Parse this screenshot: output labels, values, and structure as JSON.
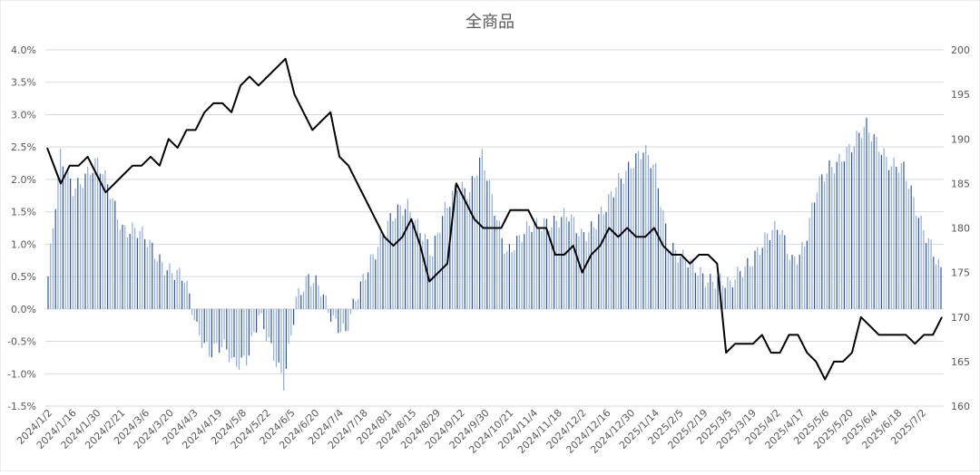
{
  "chart_data": {
    "type": "bar+line",
    "title": "全商品",
    "xlabel": "",
    "ylabel_left": "",
    "ylabel_right": "",
    "left_axis": {
      "range": [
        -1.5,
        4.0
      ],
      "ticks": [
        "-1.5%",
        "-1.0%",
        "-0.5%",
        "0.0%",
        "0.5%",
        "1.0%",
        "1.5%",
        "2.0%",
        "2.5%",
        "3.0%",
        "3.5%",
        "4.0%"
      ],
      "tick_values": [
        -1.5,
        -1.0,
        -0.5,
        0.0,
        0.5,
        1.0,
        1.5,
        2.0,
        2.5,
        3.0,
        3.5,
        4.0
      ]
    },
    "right_axis": {
      "range": [
        160,
        200
      ],
      "ticks": [
        "160",
        "165",
        "170",
        "175",
        "180",
        "185",
        "190",
        "195",
        "200"
      ],
      "tick_values": [
        160,
        165,
        170,
        175,
        180,
        185,
        190,
        195,
        200
      ]
    },
    "x_tick_labels": [
      "2024/1/2",
      "2024/1/16",
      "2024/1/30",
      "2024/2/21",
      "2024/3/6",
      "2024/3/20",
      "2024/4/3",
      "2024/4/19",
      "2024/5/8",
      "2024/5/22",
      "2024/6/5",
      "2024/6/20",
      "2024/7/4",
      "2024/7/18",
      "2024/8/1",
      "2024/8/15",
      "2024/8/29",
      "2024/9/12",
      "2024/9/30",
      "2024/10/21",
      "2024/11/4",
      "2024/11/18",
      "2024/12/2",
      "2024/12/16",
      "2024/12/30",
      "2025/1/14",
      "2025/2/5",
      "2025/2/19",
      "2025/3/5",
      "2025/3/19",
      "2025/4/2",
      "2025/4/17",
      "2025/5/6",
      "2025/5/20",
      "2025/6/4",
      "2025/6/18",
      "2025/7/2"
    ],
    "grid": true,
    "bar_series_color": "#4472c4",
    "line_series_color": "#000000",
    "bar_series_points": [
      [
        0,
        0.5
      ],
      [
        5,
        2.3
      ],
      [
        10,
        1.9
      ],
      [
        15,
        2.1
      ],
      [
        20,
        2.2
      ],
      [
        25,
        1.8
      ],
      [
        30,
        1.3
      ],
      [
        35,
        1.2
      ],
      [
        40,
        1.0
      ],
      [
        45,
        0.8
      ],
      [
        50,
        0.6
      ],
      [
        55,
        0.4
      ],
      [
        60,
        -0.3
      ],
      [
        65,
        -0.6
      ],
      [
        70,
        -0.6
      ],
      [
        75,
        -0.9
      ],
      [
        80,
        -0.7
      ],
      [
        85,
        -0.1
      ],
      [
        90,
        -0.7
      ],
      [
        95,
        -1.1
      ],
      [
        100,
        0.2
      ],
      [
        105,
        0.4
      ],
      [
        110,
        0.3
      ],
      [
        115,
        -0.1
      ],
      [
        120,
        -0.4
      ],
      [
        125,
        0.2
      ],
      [
        130,
        0.8
      ],
      [
        135,
        1.2
      ],
      [
        140,
        1.4
      ],
      [
        145,
        1.6
      ],
      [
        150,
        1.3
      ],
      [
        155,
        0.8
      ],
      [
        160,
        1.5
      ],
      [
        165,
        2.0
      ],
      [
        170,
        1.8
      ],
      [
        175,
        2.3
      ],
      [
        180,
        1.6
      ],
      [
        185,
        0.9
      ],
      [
        190,
        1.0
      ],
      [
        195,
        1.3
      ],
      [
        200,
        1.4
      ],
      [
        205,
        1.3
      ],
      [
        210,
        1.4
      ],
      [
        215,
        1.2
      ],
      [
        220,
        1.3
      ],
      [
        225,
        1.5
      ],
      [
        230,
        2.0
      ],
      [
        235,
        2.3
      ],
      [
        240,
        2.4
      ],
      [
        245,
        2.1
      ],
      [
        250,
        1.1
      ],
      [
        255,
        0.8
      ],
      [
        260,
        0.6
      ],
      [
        265,
        0.5
      ],
      [
        270,
        0.5
      ],
      [
        275,
        0.3
      ],
      [
        280,
        0.6
      ],
      [
        285,
        0.9
      ],
      [
        290,
        1.1
      ],
      [
        295,
        1.2
      ],
      [
        300,
        0.8
      ],
      [
        305,
        1.0
      ],
      [
        310,
        1.8
      ],
      [
        315,
        2.2
      ],
      [
        320,
        2.4
      ],
      [
        325,
        2.5
      ],
      [
        330,
        2.8
      ],
      [
        335,
        2.6
      ],
      [
        340,
        2.2
      ],
      [
        345,
        2.1
      ],
      [
        350,
        1.6
      ],
      [
        355,
        1.1
      ],
      [
        360,
        0.5
      ]
    ],
    "line_series_points": [
      [
        0,
        189
      ],
      [
        6,
        185
      ],
      [
        10,
        187
      ],
      [
        14,
        187
      ],
      [
        18,
        188
      ],
      [
        22,
        186
      ],
      [
        26,
        184
      ],
      [
        30,
        185
      ],
      [
        34,
        186
      ],
      [
        38,
        187
      ],
      [
        42,
        187
      ],
      [
        46,
        188
      ],
      [
        50,
        187
      ],
      [
        54,
        190
      ],
      [
        58,
        189
      ],
      [
        62,
        191
      ],
      [
        66,
        191
      ],
      [
        70,
        193
      ],
      [
        74,
        194
      ],
      [
        78,
        194
      ],
      [
        82,
        193
      ],
      [
        86,
        196
      ],
      [
        90,
        197
      ],
      [
        94,
        196
      ],
      [
        98,
        197
      ],
      [
        102,
        198
      ],
      [
        106,
        199
      ],
      [
        110,
        195
      ],
      [
        114,
        193
      ],
      [
        118,
        191
      ],
      [
        122,
        192
      ],
      [
        126,
        193
      ],
      [
        130,
        188
      ],
      [
        134,
        187
      ],
      [
        138,
        185
      ],
      [
        142,
        183
      ],
      [
        146,
        181
      ],
      [
        150,
        179
      ],
      [
        154,
        178
      ],
      [
        158,
        179
      ],
      [
        162,
        181
      ],
      [
        166,
        178
      ],
      [
        170,
        174
      ],
      [
        174,
        175
      ],
      [
        178,
        176
      ],
      [
        182,
        185
      ],
      [
        186,
        183
      ],
      [
        190,
        181
      ],
      [
        194,
        180
      ],
      [
        198,
        180
      ],
      [
        202,
        180
      ],
      [
        206,
        182
      ],
      [
        210,
        182
      ],
      [
        214,
        182
      ],
      [
        218,
        180
      ],
      [
        222,
        180
      ],
      [
        226,
        177
      ],
      [
        230,
        177
      ],
      [
        234,
        178
      ],
      [
        238,
        175
      ],
      [
        242,
        177
      ],
      [
        246,
        178
      ],
      [
        250,
        180
      ],
      [
        254,
        179
      ],
      [
        258,
        180
      ],
      [
        262,
        179
      ],
      [
        266,
        179
      ],
      [
        270,
        180
      ],
      [
        274,
        178
      ],
      [
        278,
        177
      ],
      [
        282,
        177
      ],
      [
        286,
        176
      ],
      [
        290,
        177
      ],
      [
        294,
        177
      ],
      [
        298,
        176
      ],
      [
        302,
        166
      ],
      [
        306,
        167
      ],
      [
        310,
        167
      ],
      [
        314,
        167
      ],
      [
        318,
        168
      ],
      [
        322,
        166
      ],
      [
        326,
        166
      ],
      [
        330,
        168
      ],
      [
        334,
        168
      ],
      [
        338,
        166
      ],
      [
        342,
        165
      ],
      [
        346,
        163
      ],
      [
        350,
        165
      ],
      [
        354,
        165
      ],
      [
        358,
        166
      ],
      [
        362,
        170
      ],
      [
        366,
        169
      ],
      [
        370,
        168
      ],
      [
        374,
        168
      ],
      [
        378,
        168
      ],
      [
        382,
        168
      ],
      [
        386,
        167
      ],
      [
        390,
        168
      ],
      [
        394,
        168
      ],
      [
        398,
        170
      ]
    ]
  }
}
